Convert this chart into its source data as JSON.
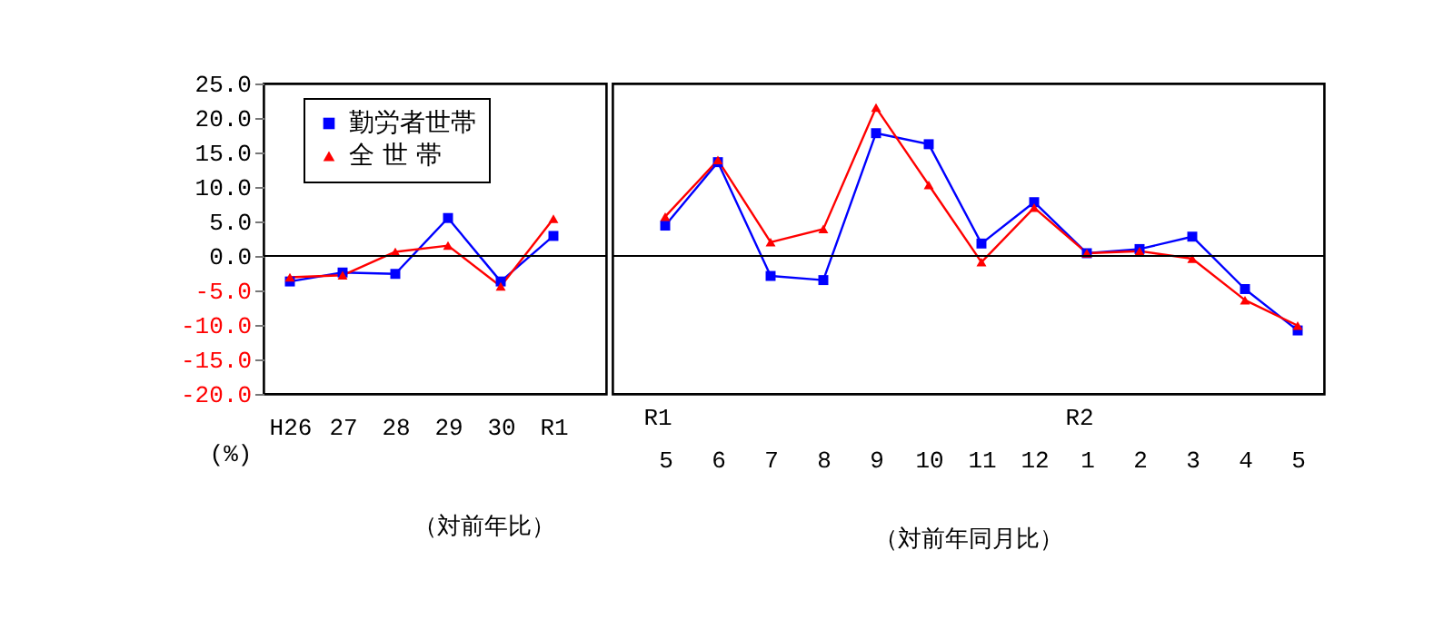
{
  "chart_data": [
    {
      "type": "line",
      "categories": [
        "H26",
        "27",
        "28",
        "29",
        "30",
        "R1"
      ],
      "ylabel": "(%)",
      "series": [
        {
          "name": "勤労者世帯",
          "color": "#0000ff",
          "marker": "square",
          "values": [
            -3.7,
            -2.4,
            -2.6,
            5.5,
            -3.7,
            2.9
          ]
        },
        {
          "name": "全 世 帯",
          "color": "#ff0000",
          "marker": "triangle",
          "values": [
            -3.1,
            -2.8,
            0.6,
            1.5,
            -4.4,
            5.4
          ]
        }
      ],
      "ylim": [
        -20,
        25
      ],
      "yticks": [
        {
          "value": 25,
          "label": "25.0"
        },
        {
          "value": 20,
          "label": "20.0"
        },
        {
          "value": 15,
          "label": "15.0"
        },
        {
          "value": 10,
          "label": "10.0"
        },
        {
          "value": 5,
          "label": "5.0"
        },
        {
          "value": 0,
          "label": "0.0"
        },
        {
          "value": -5,
          "label": "-5.0"
        },
        {
          "value": -10,
          "label": "-10.0"
        },
        {
          "value": -15,
          "label": "-15.0"
        },
        {
          "value": -20,
          "label": "-20.0"
        }
      ],
      "ref_lines": [
        {
          "axis": "y",
          "value": 0,
          "color": "#000000"
        }
      ],
      "annotations": [
        "（対前年比）"
      ],
      "legend": "top",
      "grid": false
    },
    {
      "type": "line",
      "categories": [
        "5",
        "6",
        "7",
        "8",
        "9",
        "10",
        "11",
        "12",
        "1",
        "2",
        "3",
        "4",
        "5"
      ],
      "series": [
        {
          "color": "#0000ff",
          "marker": "square",
          "values": [
            4.4,
            13.6,
            -2.9,
            -3.5,
            17.8,
            16.2,
            1.8,
            7.8,
            0.4,
            1.0,
            2.8,
            -4.8,
            -10.8
          ]
        },
        {
          "color": "#ff0000",
          "marker": "triangle",
          "values": [
            5.7,
            13.9,
            2.0,
            3.9,
            21.5,
            10.3,
            -0.9,
            7.0,
            0.4,
            0.7,
            -0.4,
            -6.4,
            -10.1
          ]
        }
      ],
      "ylim": [
        -20,
        25
      ],
      "ref_lines": [
        {
          "axis": "y",
          "value": 0,
          "color": "#000000"
        }
      ],
      "annotations": [
        "R1",
        "R2",
        "（対前年同月比）"
      ],
      "tick_labels": "x",
      "grid": false
    }
  ]
}
